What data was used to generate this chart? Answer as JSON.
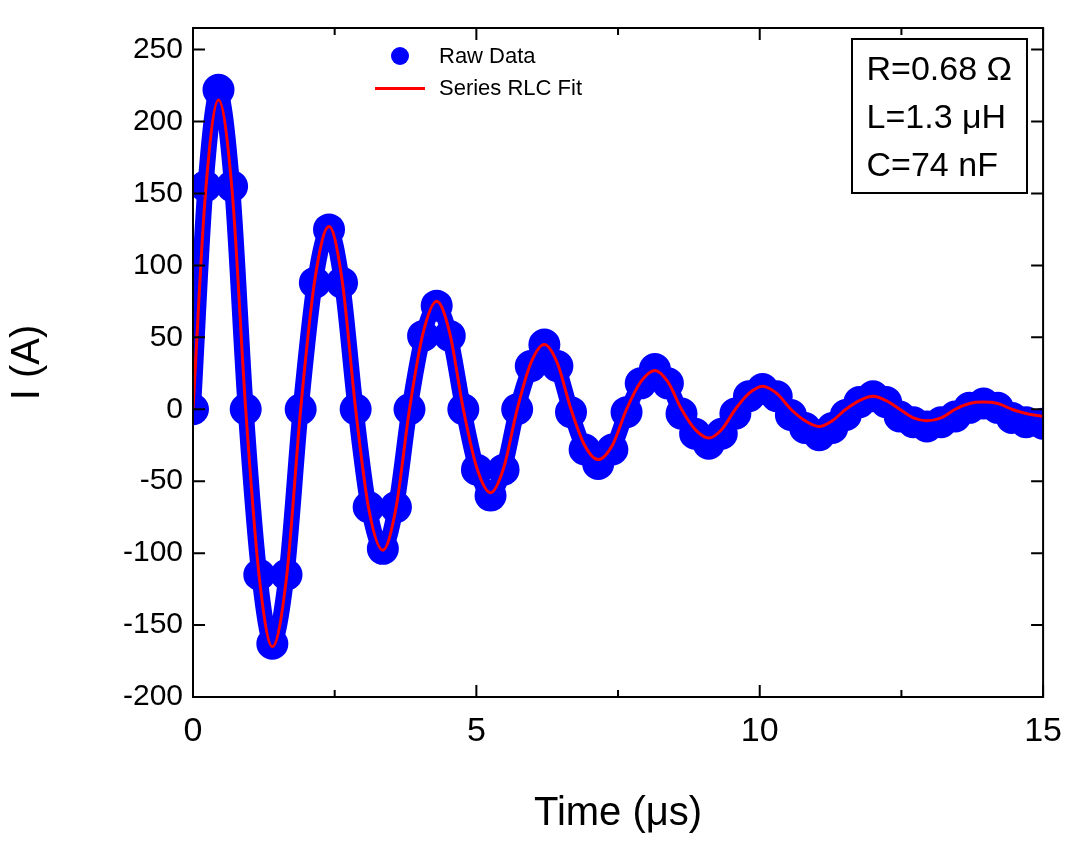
{
  "chart_data": {
    "type": "line",
    "xlabel": "Time (μs)",
    "ylabel": "I (A)",
    "xlim": [
      0,
      15
    ],
    "ylim": [
      -200,
      265
    ],
    "xticks": [
      0,
      {
        "value": 2.5,
        "label": null
      },
      5,
      {
        "value": 7.5,
        "label": null
      },
      10,
      {
        "value": 12.5,
        "label": null
      },
      15
    ],
    "yticks": [
      -200,
      -150,
      -100,
      -50,
      0,
      50,
      100,
      150,
      200,
      250
    ],
    "legend": "top",
    "annotations": [
      "R=0.68 Ω",
      "L=1.3 μH",
      "C=74 nF"
    ],
    "series": [
      {
        "name": "Raw Data",
        "color": "#0000ff",
        "marker": "circle",
        "x": [
          0,
          0.22,
          0.45,
          0.69,
          0.93,
          1.17,
          1.4,
          1.65,
          1.9,
          2.15,
          2.4,
          2.63,
          2.87,
          3.1,
          3.35,
          3.58,
          3.82,
          4.06,
          4.3,
          4.53,
          4.77,
          5.01,
          5.25,
          5.48,
          5.72,
          5.96,
          6.2,
          6.43,
          6.67,
          6.91,
          7.15,
          7.4,
          7.65,
          7.9,
          8.15,
          8.38,
          8.62,
          8.86,
          9.1,
          9.33,
          9.57,
          9.81,
          10.05,
          10.3,
          10.55,
          10.8,
          11.05,
          11.28,
          11.52,
          11.76,
          12,
          12.23,
          12.47,
          12.71,
          12.95,
          13.2,
          13.45,
          13.7,
          13.95,
          14.2,
          14.45,
          14.7,
          15
        ],
        "values": [
          0,
          155,
          222,
          155,
          0,
          -115,
          -163,
          -115,
          0,
          88,
          125,
          88,
          0,
          -68,
          -97,
          -68,
          0,
          51,
          72,
          51,
          0,
          -42,
          -60,
          -42,
          0,
          30,
          45,
          30,
          -2,
          -28,
          -38,
          -28,
          -2,
          18,
          28,
          18,
          -3,
          -17,
          -24,
          -17,
          -3,
          9,
          14,
          9,
          -4,
          -13,
          -18,
          -13,
          -4,
          5,
          9,
          5,
          -5,
          -9,
          -12,
          -9,
          -5,
          1,
          4,
          1,
          -6,
          -9,
          -10
        ]
      },
      {
        "name": "Series RLC Fit",
        "color": "#ff0000",
        "marker": "none",
        "x": [
          0,
          0.22,
          0.45,
          0.69,
          0.93,
          1.17,
          1.4,
          1.65,
          1.9,
          2.15,
          2.4,
          2.63,
          2.87,
          3.1,
          3.35,
          3.58,
          3.82,
          4.06,
          4.3,
          4.53,
          4.77,
          5.01,
          5.25,
          5.48,
          5.72,
          5.96,
          6.2,
          6.43,
          6.67,
          6.91,
          7.15,
          7.4,
          7.65,
          7.9,
          8.15,
          8.38,
          8.62,
          8.86,
          9.1,
          9.33,
          9.57,
          9.81,
          10.05,
          10.3,
          10.55,
          10.8,
          11.05,
          11.28,
          11.52,
          11.76,
          12,
          12.23,
          12.47,
          12.71,
          12.95,
          13.2,
          13.45,
          13.7,
          13.95,
          14.2,
          14.45,
          14.7,
          15
        ],
        "values": [
          0,
          150,
          215,
          152,
          0,
          -117,
          -165,
          -117,
          0,
          90,
          127,
          90,
          0,
          -69,
          -98,
          -69,
          0,
          53,
          75,
          53,
          0,
          -41,
          -58,
          -41,
          0,
          32,
          45,
          32,
          0,
          -25,
          -35,
          -25,
          0,
          19,
          27,
          19,
          0,
          -14,
          -20,
          -14,
          0,
          11,
          16,
          11,
          0,
          -8,
          -12,
          -8,
          0,
          6,
          9,
          6,
          0,
          -6,
          -8,
          -6,
          0,
          4,
          5,
          4,
          0,
          -3,
          -5
        ]
      }
    ]
  }
}
